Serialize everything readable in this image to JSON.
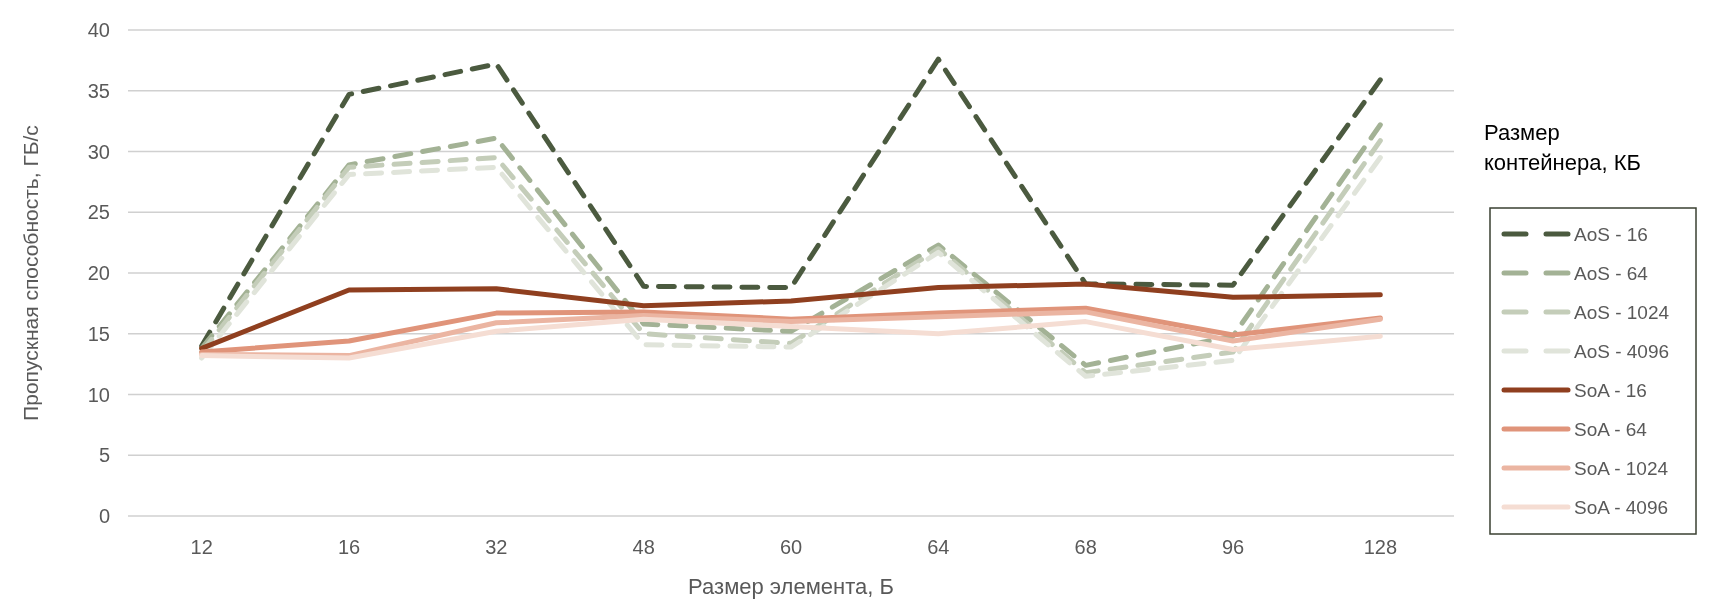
{
  "chart_data": {
    "type": "line",
    "xlabel": "Размер элемента, Б",
    "ylabel": "Пропускная способность, ГБ/с",
    "legend_title": "Размер контейнера, КБ",
    "categories": [
      "12",
      "16",
      "32",
      "48",
      "60",
      "64",
      "68",
      "96",
      "128"
    ],
    "ylim": [
      0,
      40
    ],
    "yticks": [
      0,
      5,
      10,
      15,
      20,
      25,
      30,
      35,
      40
    ],
    "grid": "y",
    "legend": "right",
    "marker": "none",
    "series": [
      {
        "name": "AoS - 16",
        "color": "#4b5a3f",
        "line_style": "dashed",
        "values": [
          14.0,
          34.7,
          37.2,
          18.9,
          18.8,
          37.6,
          19.1,
          19.0,
          35.9
        ]
      },
      {
        "name": "AoS - 64",
        "color": "#a3b295",
        "line_style": "dashed",
        "values": [
          13.8,
          28.9,
          31.1,
          15.8,
          15.2,
          22.3,
          12.4,
          14.8,
          32.2
        ]
      },
      {
        "name": "AoS - 1024",
        "color": "#c4cdb9",
        "line_style": "dashed",
        "values": [
          13.5,
          28.7,
          29.5,
          15.0,
          14.2,
          22.0,
          11.8,
          13.5,
          30.9
        ]
      },
      {
        "name": "AoS - 4096",
        "color": "#e0e4da",
        "line_style": "dashed",
        "values": [
          13.0,
          28.1,
          28.7,
          14.1,
          13.9,
          21.7,
          11.5,
          12.8,
          29.5
        ]
      },
      {
        "name": "SoA - 16",
        "color": "#8f3f1f",
        "line_style": "solid",
        "values": [
          13.8,
          18.6,
          18.7,
          17.3,
          17.7,
          18.8,
          19.1,
          18.0,
          18.2
        ]
      },
      {
        "name": "SoA - 64",
        "color": "#e0947a",
        "line_style": "solid",
        "values": [
          13.5,
          14.4,
          16.7,
          16.8,
          16.2,
          16.7,
          17.1,
          14.9,
          16.3
        ]
      },
      {
        "name": "SoA - 1024",
        "color": "#ebb5a2",
        "line_style": "solid",
        "values": [
          13.3,
          13.2,
          15.9,
          16.5,
          16.0,
          16.4,
          16.8,
          14.4,
          16.2
        ]
      },
      {
        "name": "SoA - 4096",
        "color": "#f5ddd3",
        "line_style": "solid",
        "values": [
          13.2,
          13.0,
          15.2,
          16.2,
          15.6,
          15.0,
          16.0,
          13.7,
          14.8
        ]
      }
    ]
  }
}
